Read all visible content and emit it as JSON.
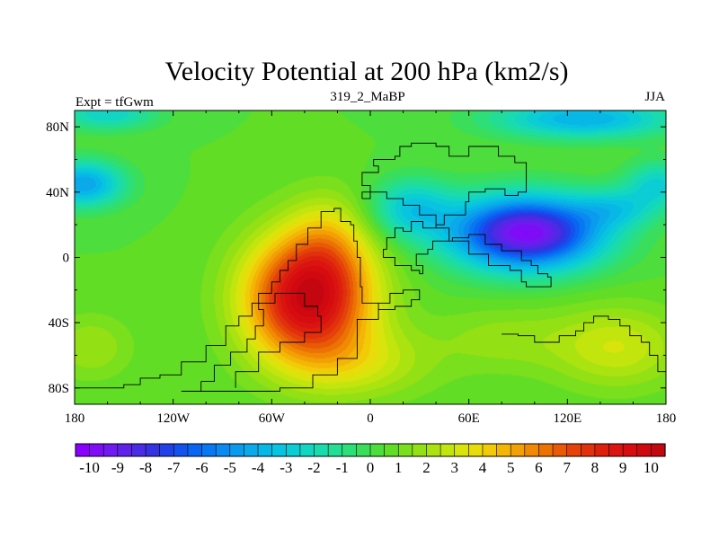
{
  "chart_data": {
    "type": "heatmap",
    "title": "Velocity Potential at 200 hPa (km2/s)",
    "subtitle_left": "Expt = tfGwm",
    "subtitle_center": "319_2_MaBP",
    "subtitle_right": "JJA",
    "x_ticks": [
      {
        "lon": -180,
        "label": "180"
      },
      {
        "lon": -120,
        "label": "120W"
      },
      {
        "lon": -60,
        "label": "60W"
      },
      {
        "lon": 0,
        "label": "0"
      },
      {
        "lon": 60,
        "label": "60E"
      },
      {
        "lon": 120,
        "label": "120E"
      },
      {
        "lon": 180,
        "label": "180"
      }
    ],
    "y_ticks": [
      {
        "lat": 80,
        "label": "80N"
      },
      {
        "lat": 40,
        "label": "40N"
      },
      {
        "lat": 0,
        "label": "0"
      },
      {
        "lat": -40,
        "label": "40S"
      },
      {
        "lat": -80,
        "label": "80S"
      }
    ],
    "xlim": [
      -180,
      180
    ],
    "ylim": [
      -90,
      90
    ],
    "colorbar": {
      "min": -10.5,
      "max": 10.5,
      "step": 0.5,
      "labels": [
        "-10",
        "-9",
        "-8",
        "-7",
        "-6",
        "-5",
        "-4",
        "-3",
        "-2",
        "-1",
        "0",
        "1",
        "2",
        "3",
        "4",
        "5",
        "6",
        "7",
        "8",
        "9",
        "10"
      ],
      "label_values": [
        -10,
        -9,
        -8,
        -7,
        -6,
        -5,
        -4,
        -3,
        -2,
        -1,
        0,
        1,
        2,
        3,
        4,
        5,
        6,
        7,
        8,
        9,
        10
      ],
      "colors": [
        "#8a00ff",
        "#7e0cf6",
        "#7019f0",
        "#5f22ea",
        "#4a2ce4",
        "#3432e2",
        "#2240e8",
        "#1452ee",
        "#0a66f2",
        "#0878f2",
        "#0a8af0",
        "#0b9bee",
        "#0aaaea",
        "#07b8e6",
        "#09c4e0",
        "#0ccdd4",
        "#12d5c2",
        "#1adbad",
        "#22dd94",
        "#2cdf78",
        "#3ade5a",
        "#4ddd3c",
        "#62dd26",
        "#7adf1c",
        "#93e014",
        "#abe310",
        "#c3e50e",
        "#d8e40c",
        "#e8dc0a",
        "#f1ca08",
        "#f4b606",
        "#f3a004",
        "#f08a04",
        "#ec7204",
        "#e85a06",
        "#e4420a",
        "#e0300c",
        "#dd200e",
        "#da1410",
        "#d60c10",
        "#d00810",
        "#c40610"
      ]
    },
    "field_centers": [
      {
        "name": "positive",
        "lon": -40,
        "lat": -25,
        "value": 10
      },
      {
        "name": "negative",
        "lon": 90,
        "lat": 15,
        "value": -10
      }
    ],
    "grid": false
  }
}
